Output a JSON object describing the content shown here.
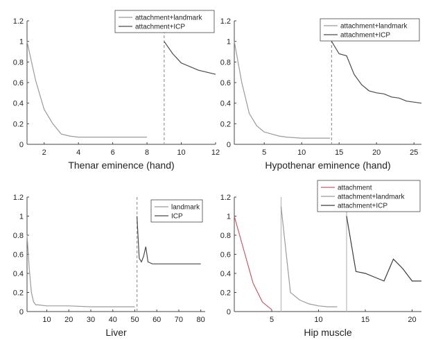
{
  "chart_data": [
    {
      "type": "line",
      "xlabel": "Thenar eminence (hand)",
      "xlim": [
        1,
        12
      ],
      "ylim": [
        0,
        1.2
      ],
      "xticks": [
        2,
        4,
        6,
        8,
        10,
        12
      ],
      "yticks": [
        0,
        0.2,
        0.4,
        0.6,
        0.8,
        1,
        1.2
      ],
      "legend": "top-right",
      "series": [
        {
          "name": "attachment+landmark",
          "color": "#9a9a9a",
          "dash": "none",
          "x": [
            1,
            1.5,
            2,
            2.5,
            3,
            3.5,
            4,
            5,
            6,
            7,
            8
          ],
          "y": [
            1.0,
            0.62,
            0.34,
            0.2,
            0.1,
            0.08,
            0.07,
            0.07,
            0.07,
            0.07,
            0.07
          ]
        },
        {
          "name": "attachment+ICP",
          "color": "#4a4a4a",
          "dash": "none",
          "x": [
            9,
            9.5,
            10,
            11,
            12
          ],
          "y": [
            1.0,
            0.88,
            0.79,
            0.72,
            0.68
          ]
        }
      ],
      "vlines": [
        {
          "x": 9,
          "color": "#9a9a9a",
          "dash": "4 3"
        }
      ]
    },
    {
      "type": "line",
      "xlabel": "Hypothenar eminence (hand)",
      "xlim": [
        1,
        26
      ],
      "ylim": [
        0,
        1.2
      ],
      "xticks": [
        5,
        10,
        15,
        20,
        25
      ],
      "yticks": [
        0,
        0.2,
        0.4,
        0.6,
        0.8,
        1,
        1.2
      ],
      "legend": "top-right",
      "series": [
        {
          "name": "attachment+landmark",
          "color": "#9a9a9a",
          "dash": "none",
          "x": [
            1,
            2,
            3,
            4,
            5,
            6,
            7,
            8,
            10,
            12,
            13.8
          ],
          "y": [
            1.0,
            0.6,
            0.3,
            0.18,
            0.12,
            0.1,
            0.08,
            0.07,
            0.06,
            0.06,
            0.06
          ]
        },
        {
          "name": "attachment+ICP",
          "color": "#4a4a4a",
          "dash": "none",
          "x": [
            14,
            15,
            16,
            17,
            18,
            19,
            20,
            21,
            22,
            23,
            24,
            25,
            26
          ],
          "y": [
            1.0,
            0.88,
            0.86,
            0.68,
            0.58,
            0.52,
            0.5,
            0.49,
            0.46,
            0.45,
            0.42,
            0.41,
            0.4
          ]
        }
      ],
      "vlines": [
        {
          "x": 14,
          "color": "#9a9a9a",
          "dash": "4 3"
        }
      ]
    },
    {
      "type": "line",
      "xlabel": "Liver",
      "xlim": [
        1,
        82
      ],
      "ylim": [
        0,
        1.2
      ],
      "xticks": [
        10,
        20,
        30,
        40,
        50,
        60,
        70,
        80
      ],
      "yticks": [
        0,
        0.2,
        0.4,
        0.6,
        0.8,
        1,
        1.2
      ],
      "legend": "top-right",
      "series": [
        {
          "name": "landmark",
          "color": "#9a9a9a",
          "dash": "none",
          "x": [
            1,
            2,
            3,
            4,
            5,
            6,
            10,
            20,
            30,
            40,
            50
          ],
          "y": [
            0.8,
            0.45,
            0.2,
            0.1,
            0.07,
            0.07,
            0.06,
            0.06,
            0.05,
            0.05,
            0.05
          ]
        },
        {
          "name": "ICP",
          "color": "#4a4a4a",
          "dash": "none",
          "x": [
            51,
            52,
            53,
            54,
            55,
            56,
            58,
            60,
            65,
            70,
            75,
            80
          ],
          "y": [
            1.0,
            0.56,
            0.52,
            0.58,
            0.68,
            0.52,
            0.5,
            0.5,
            0.5,
            0.5,
            0.5,
            0.5
          ]
        }
      ],
      "vlines": [
        {
          "x": 51,
          "color": "#9a9a9a",
          "dash": "4 3"
        }
      ]
    },
    {
      "type": "line",
      "xlabel": "Hip muscle",
      "xlim": [
        1,
        21
      ],
      "ylim": [
        0,
        1.2
      ],
      "xticks": [
        5,
        10,
        15,
        20
      ],
      "yticks": [
        0,
        0.2,
        0.4,
        0.6,
        0.8,
        1,
        1.2
      ],
      "legend": "top-right",
      "series": [
        {
          "name": "attachment",
          "color": "#c7596b",
          "dash": "none",
          "x": [
            1,
            2,
            3,
            4,
            5
          ],
          "y": [
            1.0,
            0.65,
            0.3,
            0.1,
            0.02
          ]
        },
        {
          "name": "attachment+landmark",
          "color": "#9a9a9a",
          "dash": "none",
          "x": [
            6,
            7,
            8,
            9,
            10,
            11,
            12
          ],
          "y": [
            1.1,
            0.2,
            0.12,
            0.08,
            0.06,
            0.05,
            0.05
          ]
        },
        {
          "name": "attachment+ICP",
          "color": "#3a3a3a",
          "dash": "none",
          "x": [
            13,
            14,
            15,
            16,
            17,
            18,
            19,
            20,
            21
          ],
          "y": [
            1.0,
            0.42,
            0.4,
            0.36,
            0.32,
            0.55,
            0.45,
            0.32,
            0.32
          ]
        }
      ],
      "vlines": [
        {
          "x": 6,
          "color": "#b9b9b9",
          "dash": "none"
        },
        {
          "x": 13,
          "color": "#b9b9b9",
          "dash": "none"
        }
      ]
    }
  ]
}
